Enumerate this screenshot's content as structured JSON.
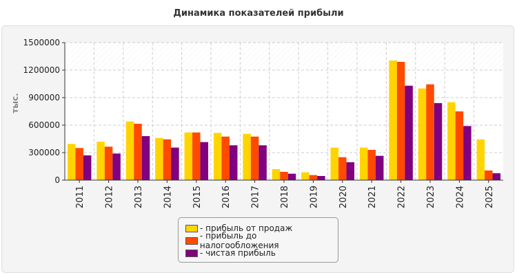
{
  "chart_data": {
    "type": "bar",
    "title": "Динамика показателей прибыли",
    "ylabel": "тыс.",
    "xlabel": "",
    "ylim": [
      0,
      1500000
    ],
    "yticks": [
      "0",
      "300000",
      "600000",
      "900000",
      "1200000",
      "1500000"
    ],
    "categories": [
      "2011",
      "2012",
      "2013",
      "2014",
      "2015",
      "2016",
      "2017",
      "2018",
      "2019",
      "2020",
      "2021",
      "2022",
      "2023",
      "2024",
      "2025"
    ],
    "series": [
      {
        "name": "- прибыль от продаж",
        "color": "#ffd400",
        "values": [
          395000,
          420000,
          640000,
          460000,
          520000,
          515000,
          505000,
          120000,
          85000,
          355000,
          355000,
          1305000,
          1000000,
          850000,
          445000
        ]
      },
      {
        "name": "- прибыль до налогообложения",
        "color": "#ff4a00",
        "values": [
          350000,
          365000,
          615000,
          445000,
          520000,
          475000,
          475000,
          90000,
          55000,
          250000,
          330000,
          1290000,
          1045000,
          750000,
          105000
        ]
      },
      {
        "name": "- чистая прибыль",
        "color": "#800080",
        "values": [
          270000,
          290000,
          480000,
          355000,
          415000,
          380000,
          380000,
          70000,
          45000,
          195000,
          265000,
          1030000,
          840000,
          590000,
          75000
        ]
      }
    ],
    "grid": true,
    "legend_position": "bottom-center"
  }
}
